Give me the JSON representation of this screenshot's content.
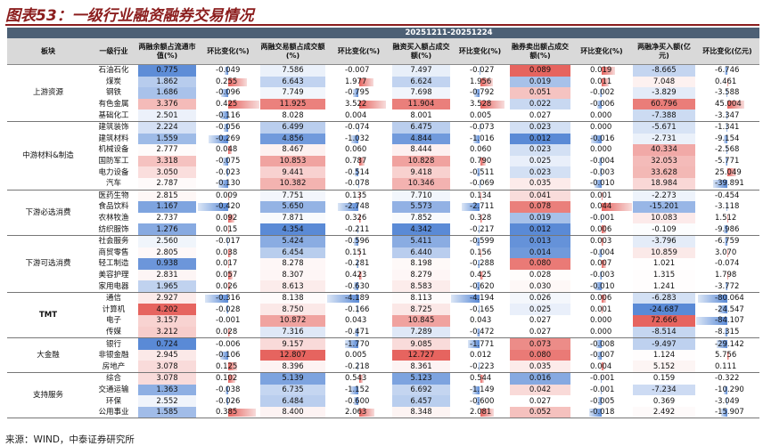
{
  "title": "图表53：一级行业融资融券交易情况",
  "period": "20251211-20251224",
  "columns": [
    "板块",
    "一级行业",
    "两融余额占流通市值(%)",
    "环比变化(%)",
    "两融交易额占成交额(%)",
    "环比变化(%)",
    "融资买入额占成交额(%)",
    "环比变化(%)",
    "融券卖出额占成交额(%)",
    "环比变化(%)",
    "两融净买入额(亿元)",
    "环比变化(亿元)"
  ],
  "groups": [
    {
      "name": "上游资源",
      "rows": [
        [
          "石油石化",
          "0.775",
          "-0.049",
          "7.586",
          "-0.007",
          "7.497",
          "-0.027",
          "0.089",
          "0.019",
          "-8.665",
          "-6.746"
        ],
        [
          "煤炭",
          "1.862",
          "0.255",
          "6.643",
          "1.977",
          "6.624",
          "1.956",
          "0.019",
          "0.011",
          "7.048",
          "0.461"
        ],
        [
          "钢铁",
          "1.686",
          "-0.096",
          "7.749",
          "-0.795",
          "7.698",
          "-0.792",
          "0.051",
          "-0.002",
          "-3.829",
          "-3.588"
        ],
        [
          "有色金属",
          "3.376",
          "0.425",
          "11.925",
          "3.522",
          "11.904",
          "3.528",
          "0.022",
          "-0.006",
          "60.796",
          "45.004"
        ],
        [
          "基础化工",
          "2.501",
          "-0.116",
          "8.028",
          "0.004",
          "8.001",
          "0.005",
          "0.027",
          "0.000",
          "-7.388",
          "-3.347"
        ]
      ]
    },
    {
      "name": "中游材料&制造",
      "rows": [
        [
          "建筑装饰",
          "2.224",
          "-0.056",
          "6.499",
          "-0.074",
          "6.475",
          "-0.073",
          "0.023",
          "0.000",
          "-5.671",
          "-1.341"
        ],
        [
          "建筑材料",
          "1.559",
          "-0.269",
          "4.856",
          "-1.032",
          "4.844",
          "-1.016",
          "0.012",
          "-0.016",
          "-2.731",
          "-9.154"
        ],
        [
          "机械设备",
          "2.777",
          "0.048",
          "8.467",
          "0.060",
          "8.444",
          "0.060",
          "0.023",
          "0.000",
          "40.334",
          "-2.568"
        ],
        [
          "国防军工",
          "3.318",
          "-0.075",
          "10.853",
          "0.787",
          "10.828",
          "0.790",
          "0.025",
          "-0.004",
          "32.053",
          "-5.771"
        ],
        [
          "电力设备",
          "3.050",
          "-0.023",
          "9.441",
          "-0.514",
          "9.418",
          "-0.511",
          "0.023",
          "-0.003",
          "33.628",
          "25.049"
        ],
        [
          "汽车",
          "2.787",
          "-0.130",
          "10.382",
          "-0.078",
          "10.346",
          "-0.069",
          "0.035",
          "-0.010",
          "18.984",
          "-39.891"
        ]
      ]
    },
    {
      "name": "下游必选消费",
      "rows": [
        [
          "医药生物",
          "2.815",
          "0.009",
          "7.751",
          "0.135",
          "7.710",
          "0.134",
          "0.041",
          "0.001",
          "-2.273",
          "-0.454"
        ],
        [
          "食品饮料",
          "1.167",
          "-0.420",
          "5.650",
          "-2.748",
          "5.573",
          "-2.711",
          "0.078",
          "0.044",
          "-15.201",
          "-3.118"
        ],
        [
          "农林牧渔",
          "2.737",
          "0.092",
          "7.871",
          "0.326",
          "7.852",
          "0.328",
          "0.019",
          "-0.001",
          "10.083",
          "1.512"
        ],
        [
          "纺织服饰",
          "1.276",
          "0.015",
          "4.354",
          "-0.211",
          "4.342",
          "-0.217",
          "0.012",
          "0.006",
          "-0.109",
          "-9.986"
        ]
      ]
    },
    {
      "name": "下游可选消费",
      "rows": [
        [
          "社会服务",
          "2.560",
          "-0.017",
          "5.424",
          "-0.596",
          "5.411",
          "-0.599",
          "0.013",
          "0.003",
          "-3.796",
          "-6.759"
        ],
        [
          "商贸零售",
          "2.805",
          "0.038",
          "6.454",
          "0.151",
          "6.440",
          "0.156",
          "0.014",
          "-0.004",
          "10.859",
          "3.070"
        ],
        [
          "轻工制造",
          "0.938",
          "0.017",
          "8.278",
          "-0.281",
          "8.198",
          "-0.288",
          "0.080",
          "0.007",
          "1.021",
          "-0.074"
        ],
        [
          "美容护理",
          "2.831",
          "0.057",
          "8.307",
          "0.423",
          "8.279",
          "0.425",
          "0.028",
          "-0.003",
          "1.315",
          "1.798"
        ],
        [
          "家用电器",
          "1.965",
          "0.026",
          "8.613",
          "-0.630",
          "8.583",
          "-0.620",
          "0.030",
          "-0.010",
          "1.241",
          "-3.772"
        ]
      ]
    },
    {
      "name": "TMT",
      "rows": [
        [
          "通信",
          "2.927",
          "-0.316",
          "8.138",
          "-4.189",
          "8.113",
          "-4.194",
          "0.026",
          "0.006",
          "-6.283",
          "-80.064"
        ],
        [
          "计算机",
          "4.202",
          "-0.028",
          "8.750",
          "-0.166",
          "8.725",
          "-0.165",
          "0.025",
          "0.001",
          "-24.687",
          "-24.547"
        ],
        [
          "电子",
          "3.157",
          "-0.001",
          "10.872",
          "0.043",
          "10.845",
          "0.043",
          "0.027",
          "0.000",
          "72.666",
          "-84.107"
        ],
        [
          "传媒",
          "3.212",
          "0.028",
          "7.316",
          "-0.471",
          "7.289",
          "-0.472",
          "0.027",
          "0.000",
          "-8.514",
          "-8.315"
        ]
      ]
    },
    {
      "name": "大金融",
      "rows": [
        [
          "银行",
          "0.724",
          "-0.006",
          "9.157",
          "-1.770",
          "9.085",
          "-1.771",
          "0.073",
          "-0.008",
          "-9.497",
          "-29.142"
        ],
        [
          "非银金融",
          "2.945",
          "-0.106",
          "12.807",
          "0.005",
          "12.727",
          "0.012",
          "0.080",
          "-0.007",
          "1.124",
          "5.756"
        ],
        [
          "房地产",
          "3.078",
          "0.125",
          "8.396",
          "-0.218",
          "8.361",
          "-0.223",
          "0.035",
          "0.004",
          "5.152",
          "0.111"
        ]
      ]
    },
    {
      "name": "支持服务",
      "rows": [
        [
          "综合",
          "3.078",
          "0.102",
          "5.139",
          "0.543",
          "5.123",
          "0.544",
          "0.016",
          "-0.001",
          "0.159",
          "-0.322"
        ],
        [
          "交通运输",
          "1.363",
          "-0.038",
          "6.735",
          "-1.152",
          "6.692",
          "-1.149",
          "0.042",
          "-0.001",
          "-7.234",
          "-10.290"
        ],
        [
          "环保",
          "2.552",
          "-0.026",
          "6.484",
          "-0.600",
          "6.457",
          "-0.600",
          "0.027",
          "-0.005",
          "0.369",
          "-3.049"
        ],
        [
          "公用事业",
          "1.585",
          "0.385",
          "8.400",
          "2.063",
          "8.348",
          "2.081",
          "0.052",
          "-0.018",
          "2.492",
          "-15.907"
        ]
      ]
    }
  ],
  "source": "来源：WIND，中泰证券研究所"
}
